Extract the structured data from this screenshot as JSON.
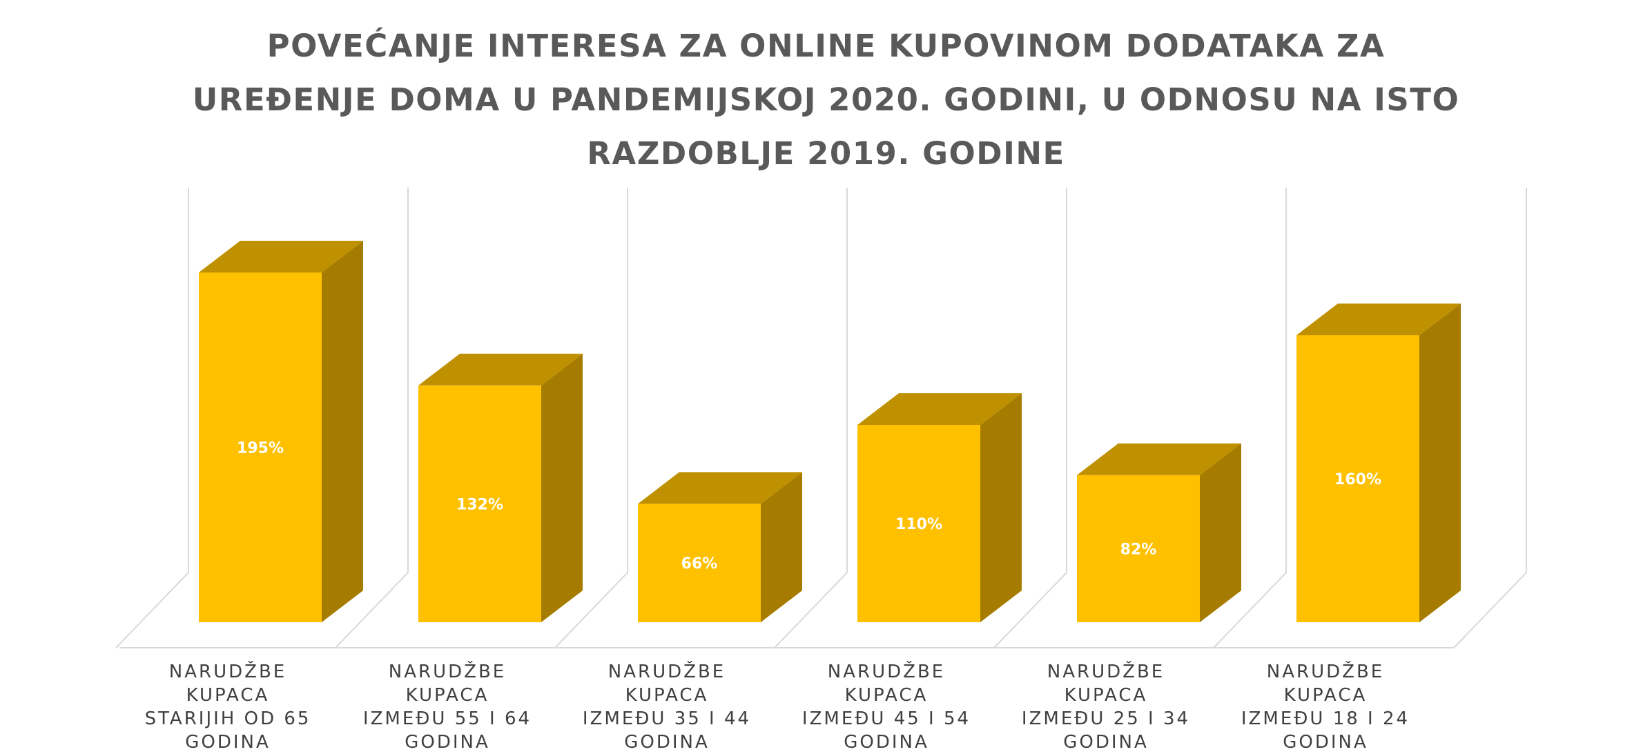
{
  "chart_data": {
    "type": "bar",
    "title_lines": [
      "POVEĆANJE INTERESA ZA ONLINE KUPOVINOM DODATAKA ZA",
      "UREĐENJE DOMA U PANDEMIJSKOJ 2020. GODINI, U ODNOSU NA ISTO",
      "RAZDOBLJE 2019. GODINE"
    ],
    "categories": [
      [
        "NARUDŽBE KUPACA",
        "STARIJIH OD 65",
        "GODINA"
      ],
      [
        "NARUDŽBE KUPACA",
        "IZMEĐU 55 I 64",
        "GODINA"
      ],
      [
        "NARUDŽBE KUPACA",
        "IZMEĐU 35 I 44",
        "GODINA"
      ],
      [
        "NARUDŽBE KUPACA",
        "IZMEĐU 45 I 54",
        "GODINA"
      ],
      [
        "NARUDŽBE KUPACA",
        "IZMEĐU 25 I 34",
        "GODINA"
      ],
      [
        "NARUDŽBE KUPACA",
        "IZMEĐU 18 I 24",
        "GODINA"
      ]
    ],
    "values": [
      195,
      132,
      66,
      110,
      82,
      160
    ],
    "data_labels": [
      "195%",
      "132%",
      "66%",
      "110%",
      "82%",
      "160%"
    ],
    "unit": "%",
    "ylim": [
      0,
      220
    ],
    "grid": true,
    "legend": "none",
    "style": "3d-column",
    "colors": {
      "front": "#FFC000",
      "top": "#BF9000",
      "side": "#A57C00",
      "grid": "#D9D9D9",
      "title": "#595959",
      "label": "#404040",
      "value_label": "#FFFFFF"
    }
  }
}
